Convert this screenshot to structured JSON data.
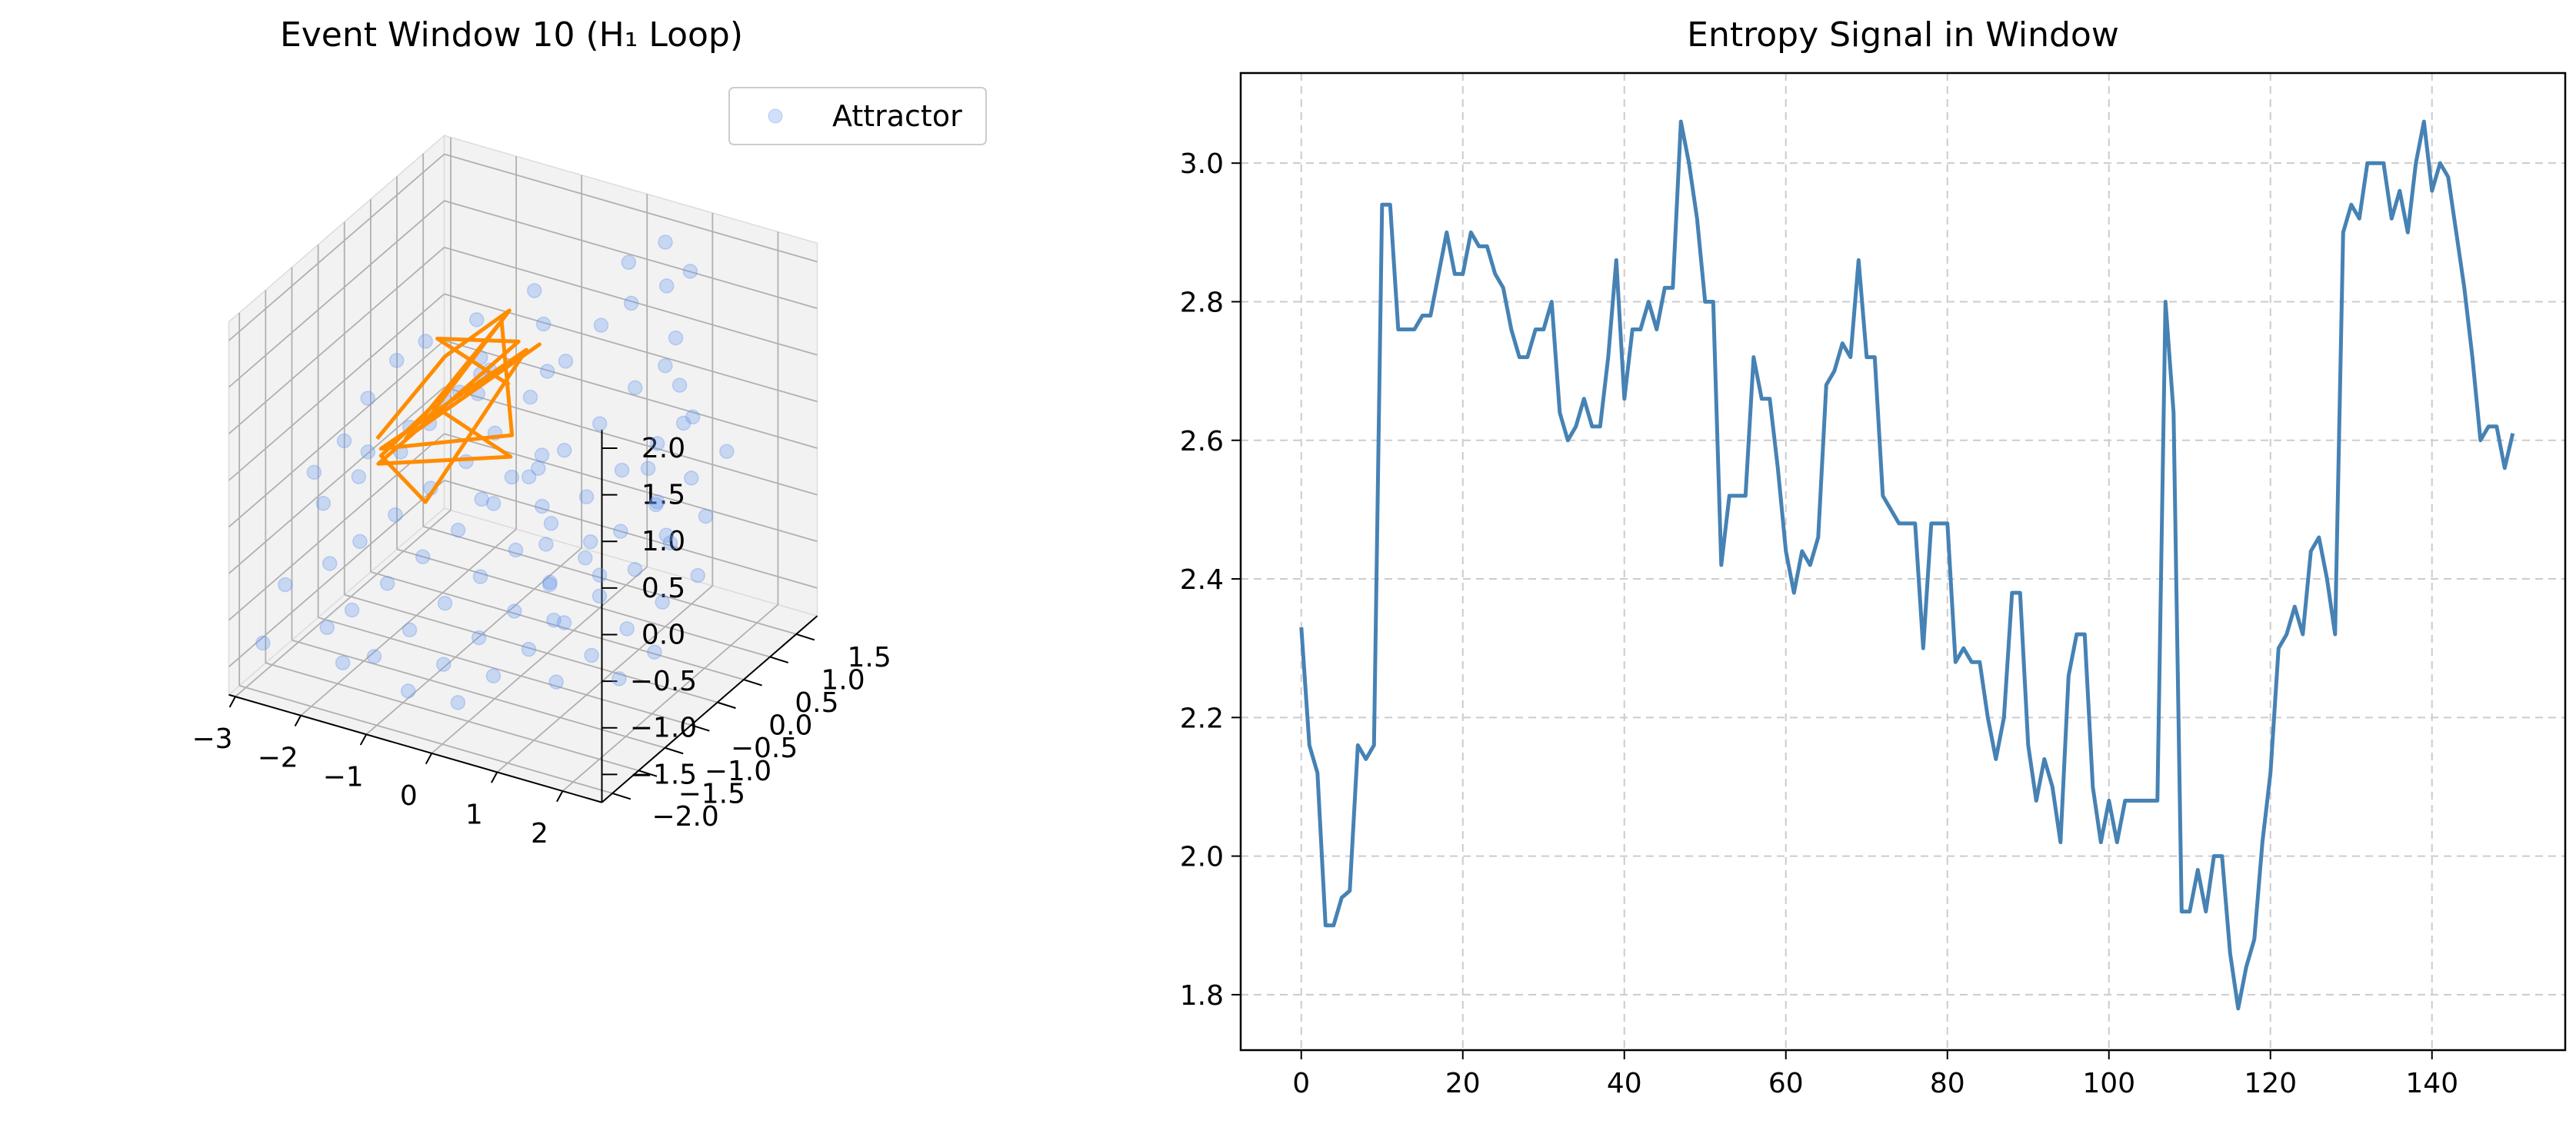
{
  "chart_data": [
    {
      "type": "scatter",
      "projection": "3d",
      "title": "Event Window 10 (H₁ Loop)",
      "xlabel": "",
      "ylabel": "",
      "zlabel": "",
      "xticks": [
        "−3",
        "−2",
        "−1",
        "0",
        "1",
        "2"
      ],
      "yticks": [
        "−2.0",
        "−1.5",
        "−1.0",
        "−0.5",
        "0.0",
        "0.5",
        "1.0",
        "1.5"
      ],
      "zticks": [
        "−1.5",
        "−1.0",
        "−0.5",
        "0.0",
        "0.5",
        "1.0",
        "1.5",
        "2.0"
      ],
      "xlim": [
        -3.1,
        2.6
      ],
      "ylim": [
        -2.2,
        1.9
      ],
      "zlim": [
        -1.8,
        2.2
      ],
      "legend": {
        "position": "top-right",
        "entries": [
          "Attractor"
        ]
      },
      "colors": {
        "attractor": "#6495ed",
        "loop": "#ff8c00",
        "pane": "#f2f2f2",
        "grid": "#b0b0b0"
      },
      "series": [
        {
          "name": "Attractor",
          "points": [
            [
              -2.6,
              -1.2,
              0.2
            ],
            [
              -2.3,
              -1.0,
              0.5
            ],
            [
              -2.1,
              -0.8,
              0.9
            ],
            [
              -1.9,
              -0.5,
              1.2
            ],
            [
              -1.7,
              -0.2,
              1.3
            ],
            [
              -2.4,
              -0.6,
              -0.1
            ],
            [
              -2.0,
              -0.3,
              0.1
            ],
            [
              -1.8,
              0.0,
              0.3
            ],
            [
              -1.5,
              0.2,
              0.6
            ],
            [
              -1.2,
              0.4,
              0.8
            ],
            [
              -2.2,
              -1.4,
              -0.6
            ],
            [
              -1.9,
              -1.2,
              -0.4
            ],
            [
              -1.6,
              -0.9,
              -0.2
            ],
            [
              -1.3,
              -0.6,
              0.0
            ],
            [
              -1.0,
              -0.3,
              0.2
            ],
            [
              -0.8,
              0.0,
              0.4
            ],
            [
              -0.5,
              0.3,
              0.7
            ],
            [
              -0.2,
              0.6,
              1.0
            ],
            [
              0.1,
              0.9,
              1.3
            ],
            [
              0.4,
              1.1,
              1.5
            ],
            [
              -1.7,
              -1.6,
              -0.9
            ],
            [
              -1.4,
              -1.3,
              -0.7
            ],
            [
              -1.1,
              -1.0,
              -0.5
            ],
            [
              -0.8,
              -0.7,
              -0.3
            ],
            [
              -0.5,
              -0.4,
              -0.1
            ],
            [
              -0.2,
              -0.1,
              0.1
            ],
            [
              0.1,
              0.2,
              0.3
            ],
            [
              0.4,
              0.5,
              0.5
            ],
            [
              0.7,
              0.8,
              0.8
            ],
            [
              1.0,
              1.0,
              1.0
            ],
            [
              -1.2,
              -1.8,
              -1.2
            ],
            [
              -0.9,
              -1.5,
              -1.0
            ],
            [
              -0.6,
              -1.2,
              -0.8
            ],
            [
              -0.3,
              -0.9,
              -0.6
            ],
            [
              0.0,
              -0.6,
              -0.4
            ],
            [
              0.3,
              -0.3,
              -0.2
            ],
            [
              0.6,
              0.0,
              0.0
            ],
            [
              0.9,
              0.3,
              0.2
            ],
            [
              1.2,
              0.6,
              0.4
            ],
            [
              1.5,
              0.9,
              0.6
            ],
            [
              -0.6,
              -1.9,
              -1.4
            ],
            [
              -0.3,
              -1.6,
              -1.2
            ],
            [
              0.0,
              -1.3,
              -1.0
            ],
            [
              0.3,
              -1.0,
              -0.8
            ],
            [
              0.6,
              -0.7,
              -0.6
            ],
            [
              0.9,
              -0.4,
              -0.4
            ],
            [
              1.2,
              -0.1,
              -0.2
            ],
            [
              1.5,
              0.2,
              0.0
            ],
            [
              1.8,
              0.5,
              0.2
            ],
            [
              2.1,
              0.8,
              0.4
            ],
            [
              0.0,
              -1.7,
              -1.5
            ],
            [
              0.3,
              -1.4,
              -1.3
            ],
            [
              0.6,
              -1.1,
              -1.1
            ],
            [
              0.9,
              -0.8,
              -0.9
            ],
            [
              1.2,
              -0.5,
              -0.7
            ],
            [
              1.5,
              -0.2,
              -0.5
            ],
            [
              1.8,
              0.1,
              -0.3
            ],
            [
              2.1,
              0.4,
              -0.1
            ],
            [
              0.5,
              0.2,
              -0.6
            ],
            [
              0.8,
              0.0,
              -0.8
            ],
            [
              -0.4,
              0.5,
              0.9
            ],
            [
              -0.7,
              0.8,
              1.2
            ],
            [
              -1.0,
              1.0,
              1.4
            ],
            [
              0.2,
              1.3,
              1.8
            ],
            [
              0.6,
              1.5,
              2.0
            ],
            [
              1.0,
              1.2,
              1.2
            ],
            [
              1.3,
              0.9,
              0.9
            ],
            [
              1.6,
              0.6,
              0.7
            ],
            [
              -1.5,
              0.6,
              0.6
            ],
            [
              -1.8,
              0.3,
              0.4
            ],
            [
              -2.1,
              0.0,
              0.2
            ],
            [
              -2.5,
              -0.3,
              0.0
            ],
            [
              -2.7,
              -0.9,
              -0.3
            ],
            [
              -2.8,
              -1.5,
              -0.9
            ],
            [
              -2.9,
              -1.8,
              -1.4
            ],
            [
              1.1,
              -1.2,
              -1.3
            ],
            [
              1.4,
              -0.9,
              -1.1
            ],
            [
              1.7,
              -0.6,
              -0.9
            ],
            [
              2.0,
              -0.3,
              -0.7
            ],
            [
              2.3,
              0.0,
              -0.5
            ],
            [
              0.2,
              -0.2,
              -0.9
            ],
            [
              0.5,
              -0.5,
              -1.1
            ],
            [
              -0.1,
              0.1,
              -0.7
            ],
            [
              -0.4,
              0.4,
              -0.5
            ],
            [
              -0.7,
              0.7,
              -0.3
            ],
            [
              1.9,
              -1.0,
              -1.2
            ],
            [
              2.2,
              -0.7,
              -1.0
            ],
            [
              0.7,
              1.4,
              1.6
            ],
            [
              0.9,
              1.6,
              1.7
            ],
            [
              -0.9,
              -0.2,
              0.9
            ],
            [
              -1.1,
              0.1,
              1.1
            ],
            [
              -1.4,
              0.4,
              1.3
            ],
            [
              -0.2,
              -1.0,
              0.3
            ],
            [
              0.1,
              -0.8,
              0.5
            ],
            [
              0.4,
              -0.6,
              0.7
            ],
            [
              1.3,
              0.3,
              0.3
            ],
            [
              1.6,
              0.1,
              0.1
            ],
            [
              1.9,
              -0.1,
              -0.1
            ],
            [
              -2.0,
              -1.7,
              -1.1
            ],
            [
              -1.6,
              -1.9,
              -1.3
            ]
          ]
        },
        {
          "name": "loop",
          "points": [
            [
              -2.2,
              -0.5,
              0.3
            ],
            [
              -1.4,
              -0.2,
              1.2
            ],
            [
              -0.9,
              0.4,
              1.5
            ],
            [
              -1.6,
              -0.4,
              0.5
            ],
            [
              -0.6,
              0.6,
              1.1
            ],
            [
              -2.0,
              -0.2,
              0.2
            ],
            [
              -1.1,
              0.5,
              1.3
            ],
            [
              -0.7,
              0.2,
              0.3
            ],
            [
              -1.9,
              -0.8,
              0.4
            ],
            [
              -0.8,
              0.6,
              1.0
            ],
            [
              -1.3,
              -0.7,
              -0.1
            ],
            [
              -2.3,
              -0.3,
              0.0
            ],
            [
              -1.5,
              -0.3,
              0.7
            ],
            [
              -0.8,
              0.3,
              0.0
            ],
            [
              -2.1,
              -0.6,
              0.1
            ],
            [
              -1.0,
              0.7,
              1.0
            ],
            [
              -1.6,
              -0.1,
              1.3
            ],
            [
              -0.9,
              0.4,
              0.7
            ]
          ]
        }
      ]
    },
    {
      "type": "line",
      "title": "Entropy Signal in Window",
      "xlabel": "",
      "ylabel": "",
      "xlim": [
        -7.5,
        156.5
      ],
      "ylim": [
        1.72,
        3.13
      ],
      "xticks": [
        0,
        20,
        40,
        60,
        80,
        100,
        120,
        140
      ],
      "yticks": [
        1.8,
        2.0,
        2.2,
        2.4,
        2.6,
        2.8,
        3.0
      ],
      "xtick_labels": [
        "0",
        "20",
        "40",
        "60",
        "80",
        "100",
        "120",
        "140"
      ],
      "ytick_labels": [
        "1.8",
        "2.0",
        "2.2",
        "2.4",
        "2.6",
        "2.8",
        "3.0"
      ],
      "grid": true,
      "colors": {
        "line": "#4682b4",
        "grid": "#cccccc"
      },
      "x_start": 0,
      "values": [
        2.33,
        2.16,
        2.12,
        1.9,
        1.9,
        1.94,
        1.95,
        2.16,
        2.14,
        2.16,
        2.94,
        2.94,
        2.76,
        2.76,
        2.76,
        2.78,
        2.78,
        2.84,
        2.9,
        2.84,
        2.84,
        2.9,
        2.88,
        2.88,
        2.84,
        2.82,
        2.76,
        2.72,
        2.72,
        2.76,
        2.76,
        2.8,
        2.64,
        2.6,
        2.62,
        2.66,
        2.62,
        2.62,
        2.72,
        2.86,
        2.66,
        2.76,
        2.76,
        2.8,
        2.76,
        2.82,
        2.82,
        3.06,
        3.0,
        2.92,
        2.8,
        2.8,
        2.42,
        2.52,
        2.52,
        2.52,
        2.72,
        2.66,
        2.66,
        2.56,
        2.44,
        2.38,
        2.44,
        2.42,
        2.46,
        2.68,
        2.7,
        2.74,
        2.72,
        2.86,
        2.72,
        2.72,
        2.52,
        2.5,
        2.48,
        2.48,
        2.48,
        2.3,
        2.48,
        2.48,
        2.48,
        2.28,
        2.3,
        2.28,
        2.28,
        2.2,
        2.14,
        2.2,
        2.38,
        2.38,
        2.16,
        2.08,
        2.14,
        2.1,
        2.02,
        2.26,
        2.32,
        2.32,
        2.1,
        2.02,
        2.08,
        2.02,
        2.08,
        2.08,
        2.08,
        2.08,
        2.08,
        2.8,
        2.64,
        1.92,
        1.92,
        1.98,
        1.92,
        2.0,
        2.0,
        1.86,
        1.78,
        1.84,
        1.88,
        2.02,
        2.12,
        2.3,
        2.32,
        2.36,
        2.32,
        2.44,
        2.46,
        2.4,
        2.32,
        2.9,
        2.94,
        2.92,
        3.0,
        3.0,
        3.0,
        2.92,
        2.96,
        2.9,
        3.0,
        3.06,
        2.96,
        3.0,
        2.98,
        2.9,
        2.82,
        2.72,
        2.6,
        2.62,
        2.62,
        2.56,
        2.61
      ]
    }
  ]
}
